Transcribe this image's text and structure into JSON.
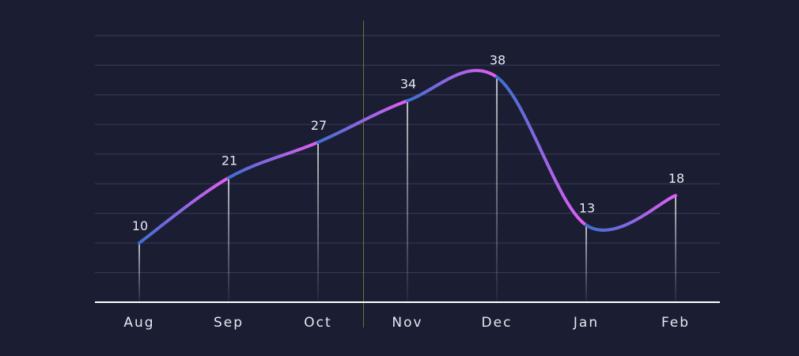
{
  "colors": {
    "background": "#1b1d33",
    "grid": "#3a3d57",
    "axis": "#ffffff",
    "line_start": "#3d6fd0",
    "line_end": "#e35ef4",
    "crosshair": "#6b7a2e",
    "drop_line": "#ffffff",
    "text": "#e6e8f2"
  },
  "chart_data": {
    "type": "line",
    "categories": [
      "Aug",
      "Sep",
      "Oct",
      "Nov",
      "Dec",
      "Jan",
      "Feb"
    ],
    "series": [
      {
        "values": [
          10,
          21,
          27,
          34,
          38,
          13,
          18
        ]
      }
    ],
    "data_labels": [
      "10",
      "21",
      "27",
      "34",
      "38",
      "13",
      "18"
    ],
    "ylim": [
      0,
      45
    ],
    "grid": true,
    "smooth": true,
    "crosshair_between": [
      "Oct",
      "Nov"
    ],
    "title": "",
    "xlabel": "",
    "ylabel": ""
  }
}
